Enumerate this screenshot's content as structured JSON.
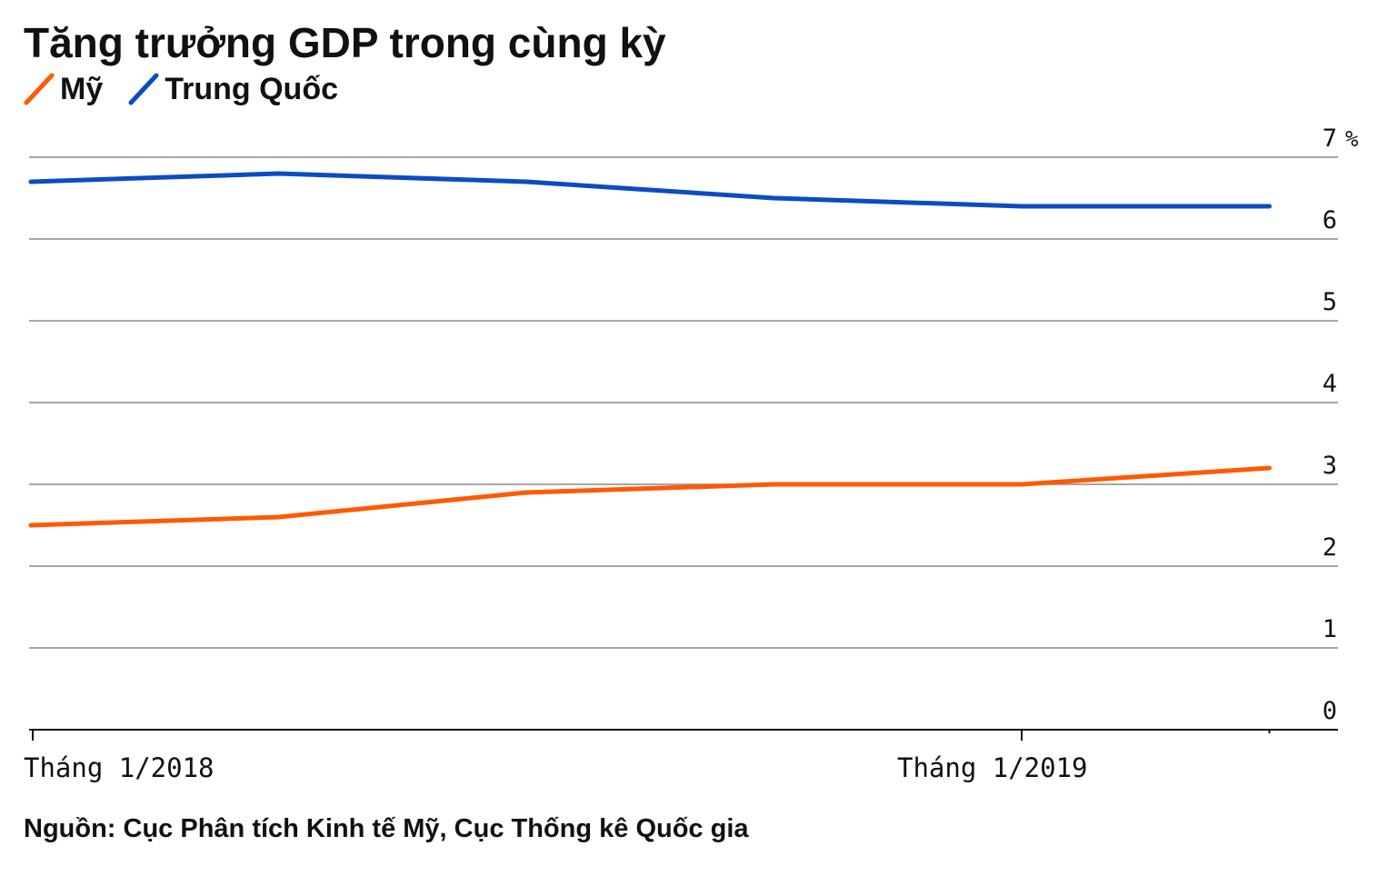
{
  "chart_data": {
    "type": "line",
    "title": "Tăng trưởng GDP trong cùng kỳ",
    "source": "Nguồn: Cục Phân tích Kinh tế Mỹ, Cục Thống kê Quốc gia",
    "x": [
      "Q1/2018",
      "Q2/2018",
      "Q3/2018",
      "Q4/2018",
      "Q1/2019",
      "Q2/2019"
    ],
    "x_tick_labels": [
      {
        "x": "Q1/2018",
        "label": "Tháng  1/2018"
      },
      {
        "x": "Q1/2019",
        "label": "Tháng  1/2019"
      }
    ],
    "y_ticks": [
      "0",
      "1",
      "2",
      "3",
      "4",
      "5",
      "6",
      "7"
    ],
    "y_unit": "%",
    "ylim": [
      0,
      7
    ],
    "grid": true,
    "legend_position": "top-left",
    "series": [
      {
        "name": "Mỹ",
        "color": "#ff5a00",
        "values": [
          2.5,
          2.6,
          2.9,
          3.0,
          3.0,
          3.2
        ]
      },
      {
        "name": "Trung Quốc",
        "color": "#0a4cc4",
        "values": [
          6.7,
          6.8,
          6.7,
          6.5,
          6.4,
          6.4
        ]
      }
    ]
  }
}
